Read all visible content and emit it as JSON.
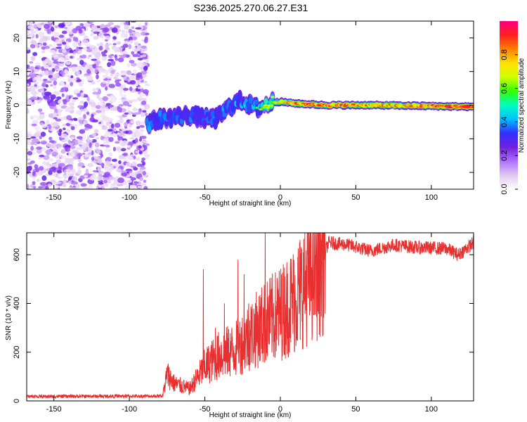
{
  "title": "S236.2025.270.06.27.E31",
  "chart_data": [
    {
      "type": "heatmap",
      "name": "spectrogram",
      "xlabel": "Height of straight line (km)",
      "ylabel": "Frequency (Hz)",
      "xlim": [
        -168,
        128
      ],
      "ylim": [
        -25,
        25
      ],
      "xticks": [
        -150,
        -100,
        -50,
        0,
        50,
        100
      ],
      "yticks": [
        -20,
        -10,
        0,
        10,
        20
      ],
      "colorbar": {
        "label": "Normalized spectral amplitude",
        "range": [
          0,
          1
        ],
        "ticks": [
          0.0,
          0.2,
          0.4,
          0.6,
          0.8
        ],
        "tick_labels": [
          "0.0",
          "0.2",
          "0.4",
          "0.6",
          "0.8"
        ],
        "colors": [
          "#ffffff",
          "#e0c8f0",
          "#b070ff",
          "#7020e0",
          "#3030ff",
          "#00c0ff",
          "#00ffc0",
          "#30ff00",
          "#d0ff00",
          "#ffe000",
          "#ff8000",
          "#ff2020",
          "#ff0080"
        ]
      },
      "noise_region": {
        "x_range": [
          -168,
          -88
        ],
        "y_range": [
          -25,
          25
        ],
        "level": 0.15
      },
      "line_center": [
        {
          "x": -88,
          "y": -5.5
        },
        {
          "x": -80,
          "y": -4
        },
        {
          "x": -70,
          "y": -3.5
        },
        {
          "x": -60,
          "y": -3
        },
        {
          "x": -50,
          "y": -4
        },
        {
          "x": -42,
          "y": -4
        },
        {
          "x": -35,
          "y": -1
        },
        {
          "x": -30,
          "y": 0.5
        },
        {
          "x": -25,
          "y": 1.5
        },
        {
          "x": -20,
          "y": 0
        },
        {
          "x": -15,
          "y": -1
        },
        {
          "x": -10,
          "y": 0
        },
        {
          "x": -5,
          "y": 1
        },
        {
          "x": 0,
          "y": 1
        },
        {
          "x": 10,
          "y": 0.5
        },
        {
          "x": 30,
          "y": 0
        },
        {
          "x": 60,
          "y": 0
        },
        {
          "x": 90,
          "y": -0.2
        },
        {
          "x": 128,
          "y": -0.5
        }
      ],
      "line_amplitude": [
        {
          "x": -88,
          "a": 0.35
        },
        {
          "x": -50,
          "a": 0.3
        },
        {
          "x": -20,
          "a": 0.45
        },
        {
          "x": -5,
          "a": 0.6
        },
        {
          "x": 10,
          "a": 0.8
        },
        {
          "x": 40,
          "a": 0.85
        },
        {
          "x": 80,
          "a": 0.75
        },
        {
          "x": 128,
          "a": 0.95
        }
      ]
    },
    {
      "type": "line",
      "name": "snr",
      "xlabel": "Height of straight line (km)",
      "ylabel": "SNR (10 * v/v)",
      "xlim": [
        -168,
        128
      ],
      "ylim": [
        0,
        690
      ],
      "xticks": [
        -150,
        -100,
        -50,
        0,
        50,
        100
      ],
      "yticks": [
        0,
        200,
        400,
        600
      ],
      "color": "#e83030",
      "series_envelope": [
        {
          "x": -168,
          "y": 18
        },
        {
          "x": -78,
          "y": 20
        },
        {
          "x": -75,
          "y": 110
        },
        {
          "x": -70,
          "y": 70
        },
        {
          "x": -60,
          "y": 50
        },
        {
          "x": -50,
          "y": 140
        },
        {
          "x": -40,
          "y": 190
        },
        {
          "x": -30,
          "y": 210
        },
        {
          "x": -20,
          "y": 270
        },
        {
          "x": -10,
          "y": 320
        },
        {
          "x": 0,
          "y": 360
        },
        {
          "x": 10,
          "y": 420
        },
        {
          "x": 20,
          "y": 520
        },
        {
          "x": 25,
          "y": 540
        },
        {
          "x": 32,
          "y": 650
        },
        {
          "x": 45,
          "y": 640
        },
        {
          "x": 60,
          "y": 615
        },
        {
          "x": 75,
          "y": 640
        },
        {
          "x": 90,
          "y": 630
        },
        {
          "x": 110,
          "y": 625
        },
        {
          "x": 118,
          "y": 600
        },
        {
          "x": 128,
          "y": 650
        }
      ],
      "spikes": [
        {
          "x": -51,
          "y": 540
        },
        {
          "x": -43,
          "y": 300
        },
        {
          "x": -37,
          "y": 400
        },
        {
          "x": -28,
          "y": 580
        },
        {
          "x": -24,
          "y": 520
        },
        {
          "x": -21,
          "y": 400
        },
        {
          "x": -10,
          "y": 690
        },
        {
          "x": 4,
          "y": 450
        }
      ]
    }
  ]
}
